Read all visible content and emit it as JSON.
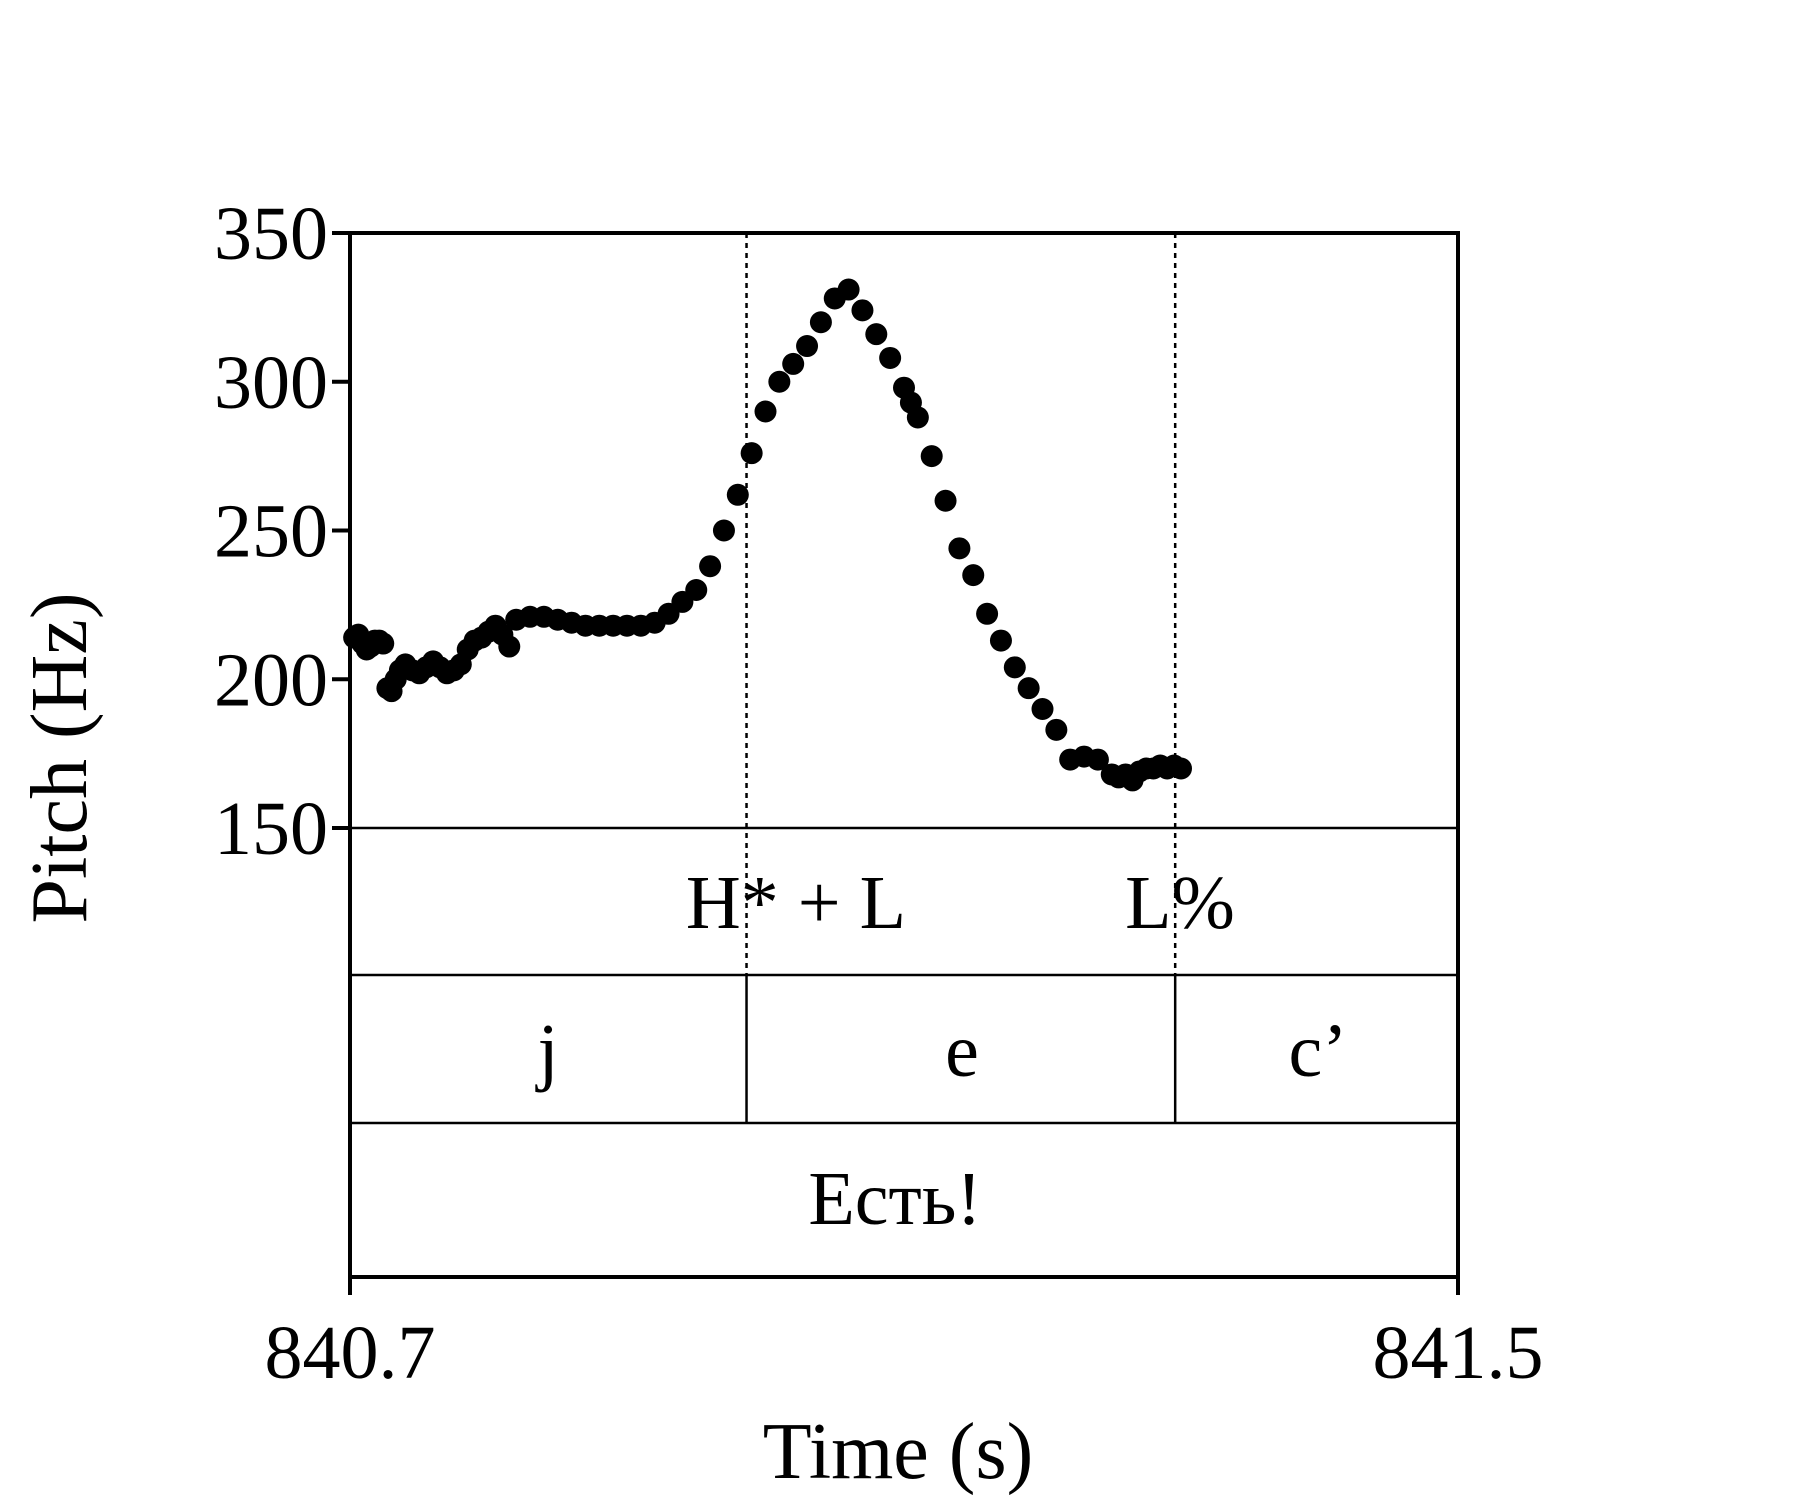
{
  "chart_data": {
    "type": "scatter",
    "xlabel": "Time (s)",
    "ylabel": "Pitch (Hz)",
    "xlim": [
      840.7,
      841.5
    ],
    "ylim": [
      150,
      350
    ],
    "x_ticks": [
      "840.7",
      "841.5"
    ],
    "y_ticks": [
      "350",
      "300",
      "250",
      "200",
      "150"
    ],
    "boundaries": [
      840.9863,
      841.2958
    ],
    "tiers": [
      [
        {
          "label": "H* + L",
          "x": 840.9863
        },
        {
          "label": "L%",
          "x": 841.2958
        }
      ],
      [
        {
          "label": "j",
          "start": 840.7,
          "end": 840.9863
        },
        {
          "label": "e",
          "start": 840.9863,
          "end": 841.2958
        },
        {
          "label": "c’",
          "start": 841.2958,
          "end": 841.5
        }
      ],
      [
        {
          "label": "Есть!",
          "start": 840.7,
          "end": 841.5
        }
      ]
    ],
    "series": [
      {
        "color": "#000000",
        "x": [
          840.703,
          840.706,
          840.709,
          840.712,
          840.715,
          840.718,
          840.721,
          840.724,
          840.727,
          840.73,
          840.733,
          840.736,
          840.74,
          840.745,
          840.75,
          840.755,
          840.76,
          840.765,
          840.77,
          840.775,
          840.78,
          840.785,
          840.79,
          840.795,
          840.8,
          840.805,
          840.81,
          840.815,
          840.82,
          840.83,
          840.84,
          840.85,
          840.86,
          840.87,
          840.88,
          840.89,
          840.9,
          840.91,
          840.92,
          840.93,
          840.94,
          840.95,
          840.96,
          840.97,
          840.98,
          840.99,
          841.0,
          841.01,
          841.02,
          841.03,
          841.04,
          841.05,
          841.06,
          841.07,
          841.08,
          841.09,
          841.1,
          841.105,
          841.11,
          841.12,
          841.13,
          841.14,
          841.15,
          841.16,
          841.17,
          841.18,
          841.19,
          841.2,
          841.21,
          841.22,
          841.23,
          841.24,
          841.25,
          841.255,
          841.26,
          841.265,
          841.27,
          841.275,
          841.28,
          841.285,
          841.29,
          841.295,
          841.3
        ],
        "y": [
          214,
          215,
          212,
          210,
          211,
          213,
          213,
          212,
          197,
          196,
          200,
          203,
          205,
          203,
          202,
          204,
          206,
          204,
          202,
          203,
          205,
          210,
          213,
          214,
          216,
          218,
          215,
          211,
          220,
          221,
          221,
          220,
          219,
          218,
          218,
          218,
          218,
          218,
          219,
          222,
          226,
          230,
          238,
          250,
          262,
          276,
          290,
          300,
          306,
          312,
          320,
          328,
          331,
          324,
          316,
          308,
          298,
          293,
          288,
          275,
          260,
          244,
          235,
          222,
          213,
          204,
          197,
          190,
          183,
          173,
          174,
          173,
          168,
          167,
          168,
          166,
          169,
          170,
          170,
          171,
          170,
          171,
          170
        ]
      }
    ]
  }
}
